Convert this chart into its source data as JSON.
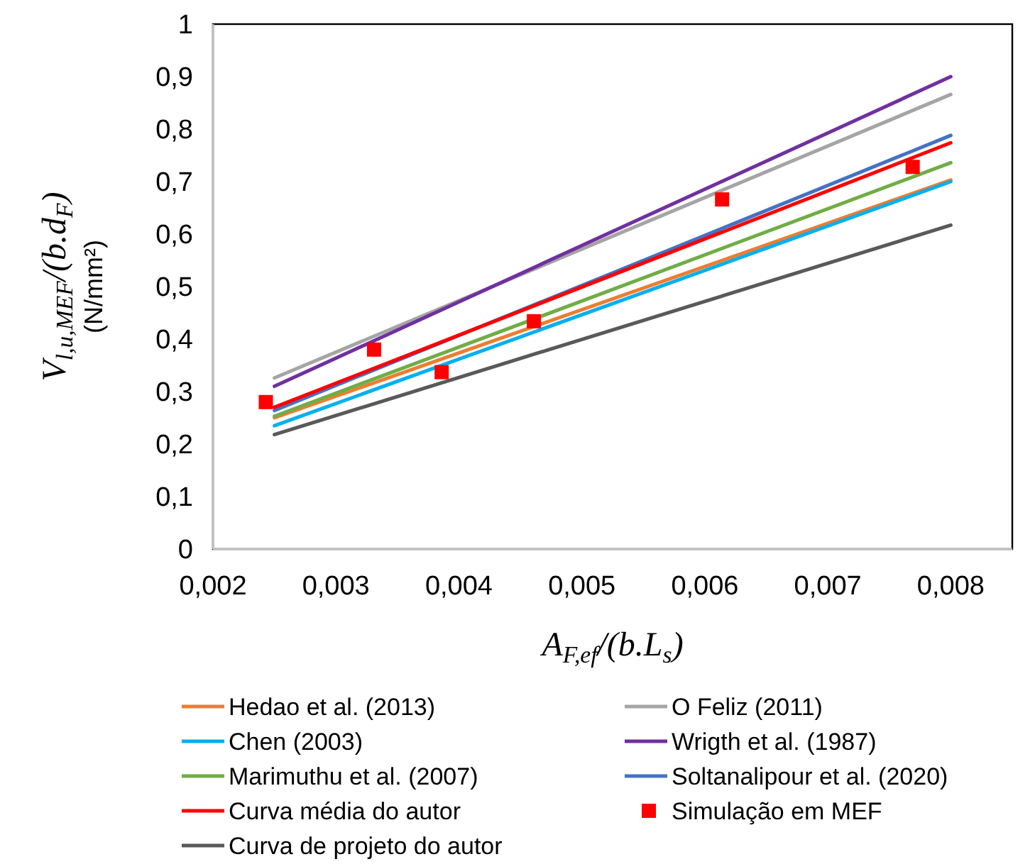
{
  "chart_data": {
    "type": "line",
    "xlabel": "A$_{F,ef}$/(b.L$_{s}$)",
    "ylabel": "V$_{l,u,MEF}$/(b.d$_{F}$)\n(N/mm²)",
    "xlim": [
      0.002,
      0.0085
    ],
    "ylim": [
      0,
      1
    ],
    "xticks": [
      {
        "value": 0.002,
        "label": "0,002"
      },
      {
        "value": 0.003,
        "label": "0,003"
      },
      {
        "value": 0.004,
        "label": "0,004"
      },
      {
        "value": 0.005,
        "label": "0,005"
      },
      {
        "value": 0.006,
        "label": "0,006"
      },
      {
        "value": 0.007,
        "label": "0,007"
      },
      {
        "value": 0.008,
        "label": "0,008"
      }
    ],
    "yticks": [
      0,
      {
        "value": 0.1,
        "label": "0,1"
      },
      {
        "value": 0.2,
        "label": "0,2"
      },
      {
        "value": 0.3,
        "label": "0,3"
      },
      {
        "value": 0.4,
        "label": "0,4"
      },
      {
        "value": 0.5,
        "label": "0,5"
      },
      {
        "value": 0.6,
        "label": "0,6"
      },
      {
        "value": 0.7,
        "label": "0,7"
      },
      {
        "value": 0.8,
        "label": "0,8"
      },
      {
        "value": 0.9,
        "label": "0,9"
      },
      1
    ],
    "grid": false,
    "legend": "bottom",
    "marker": "none",
    "line_style": "solid",
    "series": [
      {
        "name": "Hedao et al. (2013)",
        "color": "#ed7d31",
        "x": [
          0.0025,
          0.008
        ],
        "values": [
          0.25,
          0.703
        ]
      },
      {
        "name": "O Feliz (2011)",
        "color": "#a5a5a5",
        "x": [
          0.0025,
          0.008
        ],
        "values": [
          0.326,
          0.866
        ]
      },
      {
        "name": "Chen (2003)",
        "color": "#00b0f0",
        "x": [
          0.0025,
          0.008
        ],
        "values": [
          0.235,
          0.7
        ]
      },
      {
        "name": "Wrigth et al. (1987)",
        "color": "#7030a0",
        "x": [
          0.0025,
          0.008
        ],
        "values": [
          0.31,
          0.9
        ]
      },
      {
        "name": "Marimuthu et al. (2007)",
        "color": "#70ad47",
        "x": [
          0.0025,
          0.008
        ],
        "values": [
          0.253,
          0.736
        ]
      },
      {
        "name": "Soltanalipour et al. (2020)",
        "color": "#4472c4",
        "x": [
          0.0025,
          0.008
        ],
        "values": [
          0.264,
          0.788
        ]
      },
      {
        "name": "Curva média do autor",
        "color": "#ff0000",
        "x": [
          0.0025,
          0.008
        ],
        "values": [
          0.27,
          0.774
        ]
      },
      {
        "name": "Simulação em MEF",
        "type": "scatter",
        "marker": "square",
        "color": "#ff0000",
        "x": [
          0.00243,
          0.00331,
          0.00386,
          0.00461,
          0.00614,
          0.00769
        ],
        "values": [
          0.28,
          0.38,
          0.337,
          0.434,
          0.666,
          0.728
        ]
      },
      {
        "name": "Curva de projeto do autor",
        "color": "#595959",
        "x": [
          0.0025,
          0.008
        ],
        "values": [
          0.218,
          0.617
        ]
      }
    ]
  }
}
